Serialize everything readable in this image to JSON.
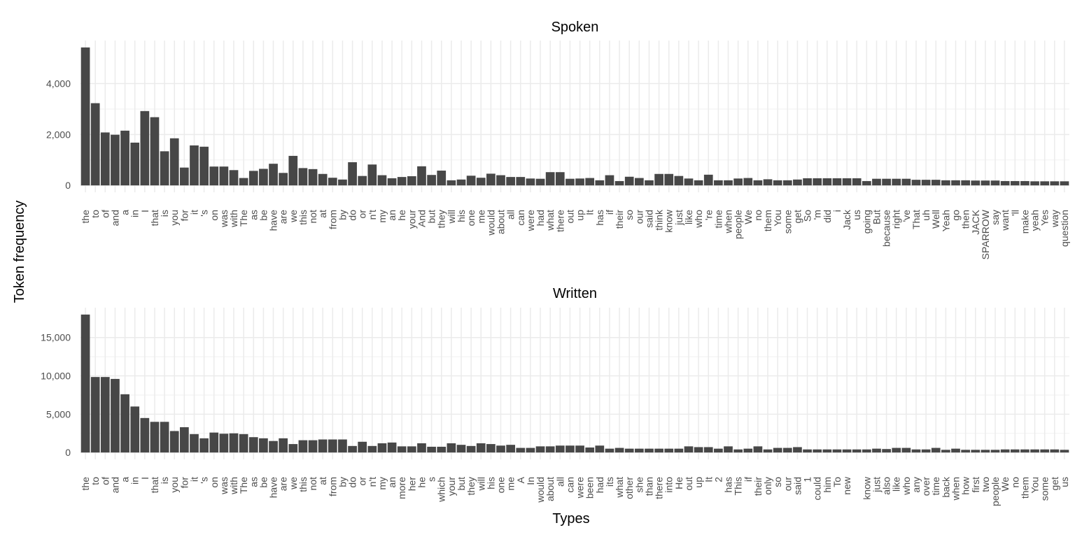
{
  "chart_data": [
    {
      "type": "bar",
      "title": "Spoken",
      "y_label": "Token frequency",
      "color": "#474747",
      "grid": true,
      "categories": [
        "the",
        "to",
        "of",
        "and",
        "a",
        "in",
        "I",
        "that",
        "is",
        "you",
        "for",
        "it",
        "'s",
        "on",
        "was",
        "with",
        "The",
        "as",
        "be",
        "have",
        "are",
        "we",
        "this",
        "not",
        "at",
        "from",
        "by",
        "do",
        "or",
        "n't",
        "my",
        "an",
        "he",
        "your",
        "And",
        "but",
        "they",
        "will",
        "his",
        "one",
        "me",
        "would",
        "about",
        "all",
        "can",
        "were",
        "had",
        "what",
        "there",
        "out",
        "up",
        "It",
        "has",
        "if",
        "their",
        "so",
        "our",
        "said",
        "think",
        "know",
        "just",
        "like",
        "who",
        "'re",
        "time",
        "when",
        "people",
        "We",
        "no",
        "them",
        "You",
        "some",
        "get",
        "So",
        "'m",
        "did",
        "i",
        "Jack",
        "us",
        "going",
        "But",
        "because",
        "right",
        "'ve",
        "That",
        "uh",
        "Well",
        "Yeah",
        "go",
        "then",
        "JACK",
        "SPARROW",
        "say",
        "want",
        "'ll",
        "make",
        "yeah",
        "Yes",
        "way",
        "question"
      ],
      "values": [
        5420,
        3230,
        2080,
        1990,
        2150,
        1680,
        2920,
        2680,
        1340,
        1850,
        700,
        1570,
        1520,
        740,
        740,
        600,
        290,
        570,
        650,
        850,
        490,
        1160,
        680,
        640,
        450,
        300,
        230,
        910,
        370,
        820,
        400,
        280,
        330,
        360,
        750,
        410,
        580,
        200,
        230,
        380,
        300,
        460,
        400,
        330,
        330,
        270,
        260,
        520,
        520,
        260,
        270,
        290,
        200,
        400,
        170,
        340,
        290,
        200,
        450,
        450,
        370,
        270,
        200,
        420,
        200,
        200,
        270,
        290,
        200,
        240,
        200,
        200,
        230,
        280,
        280,
        280,
        280,
        280,
        280,
        170,
        260,
        260,
        260,
        260,
        220,
        220,
        220,
        200,
        200,
        200,
        190,
        190,
        190,
        170,
        170,
        170,
        160,
        160,
        160,
        160
      ],
      "ylim": [
        -271,
        5691
      ],
      "yticks": [
        0,
        {
          "value": 2000,
          "label": "2,000"
        },
        {
          "value": 4000,
          "label": "4,000"
        }
      ]
    },
    {
      "type": "bar",
      "title": "Written",
      "x_label": "Types",
      "color": "#474747",
      "grid": true,
      "categories": [
        "the",
        "to",
        "of",
        "and",
        "a",
        "in",
        "I",
        "that",
        "is",
        "you",
        "for",
        "it",
        "'s",
        "on",
        "was",
        "with",
        "The",
        "as",
        "be",
        "have",
        "are",
        "we",
        "this",
        "not",
        "at",
        "from",
        "by",
        "do",
        "or",
        "n't",
        "my",
        "an",
        "more",
        "her",
        "he",
        "s",
        "which",
        "your",
        "but",
        "they",
        "will",
        "his",
        "one",
        "me",
        "A",
        "In",
        "would",
        "about",
        "all",
        "can",
        "were",
        "been",
        "had",
        "its",
        "what",
        "other",
        "she",
        "than",
        "there",
        "into",
        "He",
        "out",
        "up",
        "It",
        "2",
        "has",
        "This",
        "if",
        "their",
        "only",
        "so",
        "our",
        "said",
        "1",
        "could",
        "him",
        "To",
        "new",
        null,
        "know",
        "just",
        "also",
        "like",
        "who",
        "any",
        "over",
        "time",
        "back",
        "when",
        "how",
        "first",
        "two",
        "people",
        "We",
        "no",
        "them",
        "You",
        "some",
        "get",
        "us"
      ],
      "values": [
        18000,
        9850,
        9850,
        9600,
        7600,
        6000,
        4500,
        4000,
        4000,
        2800,
        3300,
        2400,
        1850,
        2600,
        2450,
        2500,
        2400,
        2000,
        1850,
        1500,
        1850,
        1100,
        1600,
        1600,
        1700,
        1700,
        1700,
        850,
        1400,
        850,
        1200,
        1300,
        800,
        800,
        1200,
        750,
        750,
        1200,
        1000,
        850,
        1200,
        1100,
        900,
        1000,
        600,
        600,
        800,
        800,
        900,
        900,
        900,
        650,
        900,
        500,
        600,
        500,
        500,
        500,
        500,
        500,
        500,
        800,
        700,
        700,
        500,
        800,
        400,
        500,
        800,
        400,
        600,
        600,
        700,
        400,
        400,
        400,
        400,
        400,
        400,
        400,
        500,
        450,
        600,
        600,
        400,
        400,
        600,
        350,
        500,
        350,
        350,
        350,
        350,
        400,
        400,
        400,
        400,
        400,
        400,
        350
      ],
      "ylim": [
        -900,
        18900
      ],
      "yticks": [
        0,
        {
          "value": 5000,
          "label": "5,000"
        },
        {
          "value": 10000,
          "label": "10,000"
        },
        {
          "value": 15000,
          "label": "15,000"
        }
      ]
    }
  ]
}
